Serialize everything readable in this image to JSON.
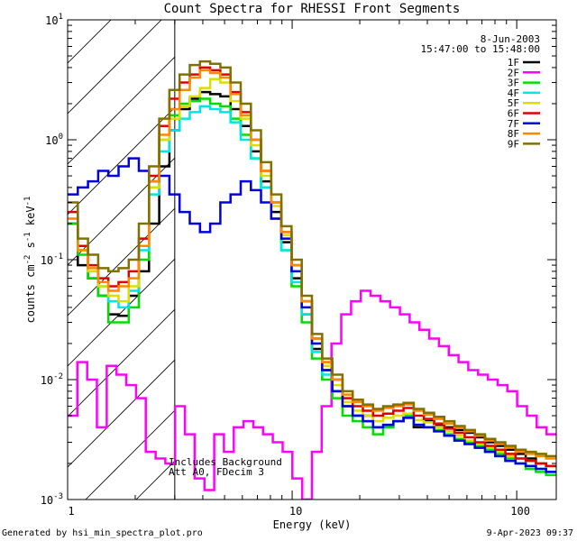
{
  "chart_data": {
    "type": "line",
    "title": "Count Spectra for RHESSI Front Segments",
    "xlabel": "Energy (keV)",
    "ylabel_main": "counts cm",
    "ylabel_sup1": "-2",
    "ylabel_mid": " s",
    "ylabel_sup2": "-1",
    "ylabel_end": " keV",
    "ylabel_sup3": "-1",
    "xscale": "log",
    "yscale": "log",
    "xlim": [
      1,
      150
    ],
    "ylim": [
      0.001,
      10
    ],
    "x_ticks": [
      {
        "value": 1,
        "label": "1"
      },
      {
        "value": 10,
        "label": "10"
      },
      {
        "value": 100,
        "label": "100"
      }
    ],
    "y_ticks": [
      {
        "exp": 1,
        "base": "10",
        "sup": "1"
      },
      {
        "exp": 0,
        "base": "10",
        "sup": "0"
      },
      {
        "exp": -1,
        "base": "10",
        "sup": "-1"
      },
      {
        "exp": -2,
        "base": "10",
        "sup": "-2"
      },
      {
        "exp": -3,
        "base": "10",
        "sup": "-3"
      }
    ],
    "date": "8-Jun-2003",
    "time_range": "15:47:00 to 15:48:00",
    "annotation_line1": "Includes Background",
    "annotation_line2": "Att A0, FDecim 3",
    "excluded_region_keV": [
      1,
      3
    ],
    "footer_left": "Generated by hsi_min_spectra_plot.pro",
    "footer_right": "9-Apr-2023 09:37",
    "legend_position": "top-right",
    "series": [
      {
        "name": "1F",
        "color": "#000000",
        "values": [
          0.2,
          0.09,
          0.07,
          0.05,
          0.035,
          0.034,
          0.05,
          0.08,
          0.2,
          0.6,
          1.2,
          1.8,
          2.2,
          2.5,
          2.4,
          2.3,
          1.8,
          1.3,
          0.8,
          0.45,
          0.25,
          0.14,
          0.07,
          0.035,
          0.018,
          0.012,
          0.008,
          0.006,
          0.005,
          0.005,
          0.004,
          0.004,
          0.0045,
          0.005,
          0.004,
          0.0045,
          0.0042,
          0.004,
          0.0038,
          0.0036,
          0.0033,
          0.003,
          0.0028,
          0.0026,
          0.0024,
          0.0022,
          0.002,
          0.0019
        ]
      },
      {
        "name": "2F",
        "color": "#ff00ff",
        "values": [
          0.005,
          0.014,
          0.01,
          0.004,
          0.013,
          0.011,
          0.009,
          0.007,
          0.0025,
          0.0022,
          0.002,
          0.006,
          0.0035,
          0.0015,
          0.0012,
          0.0035,
          0.0025,
          0.004,
          0.0045,
          0.004,
          0.0035,
          0.003,
          0.0025,
          0.0015,
          0.001,
          0.0025,
          0.006,
          0.02,
          0.035,
          0.045,
          0.055,
          0.05,
          0.045,
          0.04,
          0.035,
          0.03,
          0.026,
          0.022,
          0.019,
          0.016,
          0.014,
          0.012,
          0.011,
          0.01,
          0.009,
          0.008,
          0.006,
          0.005,
          0.004,
          0.0035
        ]
      },
      {
        "name": "3F",
        "color": "#00dd00",
        "values": [
          0.2,
          0.11,
          0.07,
          0.05,
          0.03,
          0.03,
          0.04,
          0.1,
          0.4,
          1.0,
          1.6,
          2.0,
          2.1,
          2.2,
          2.0,
          1.9,
          1.5,
          1.1,
          0.7,
          0.4,
          0.22,
          0.12,
          0.06,
          0.03,
          0.015,
          0.01,
          0.007,
          0.005,
          0.0045,
          0.004,
          0.0035,
          0.004,
          0.0045,
          0.005,
          0.0042,
          0.004,
          0.0038,
          0.0035,
          0.0032,
          0.003,
          0.0028,
          0.0026,
          0.0024,
          0.0022,
          0.002,
          0.0018,
          0.0017,
          0.0016
        ]
      },
      {
        "name": "4F",
        "color": "#00e5e5",
        "values": [
          0.25,
          0.12,
          0.08,
          0.06,
          0.045,
          0.04,
          0.055,
          0.12,
          0.35,
          0.8,
          1.2,
          1.5,
          1.7,
          1.9,
          1.8,
          1.7,
          1.4,
          1.0,
          0.7,
          0.4,
          0.22,
          0.12,
          0.065,
          0.035,
          0.017,
          0.011,
          0.008,
          0.006,
          0.005,
          0.0045,
          0.004,
          0.0042,
          0.0045,
          0.0048,
          0.0042,
          0.004,
          0.0037,
          0.0034,
          0.0031,
          0.0029,
          0.0027,
          0.0025,
          0.0023,
          0.0021,
          0.002,
          0.0019,
          0.0018,
          0.0017
        ]
      },
      {
        "name": "5F",
        "color": "#dddd00",
        "values": [
          0.22,
          0.12,
          0.08,
          0.06,
          0.05,
          0.045,
          0.06,
          0.13,
          0.4,
          1.0,
          1.5,
          1.9,
          2.3,
          2.7,
          3.2,
          3.0,
          2.1,
          1.5,
          0.9,
          0.5,
          0.28,
          0.16,
          0.09,
          0.045,
          0.02,
          0.013,
          0.009,
          0.0065,
          0.0055,
          0.005,
          0.0045,
          0.0048,
          0.005,
          0.0052,
          0.0046,
          0.0044,
          0.004,
          0.0037,
          0.0034,
          0.0031,
          0.0029,
          0.0027,
          0.0025,
          0.0023,
          0.0022,
          0.0021,
          0.002,
          0.0019
        ]
      },
      {
        "name": "6F",
        "color": "#dd0000",
        "values": [
          0.25,
          0.13,
          0.09,
          0.07,
          0.06,
          0.065,
          0.08,
          0.15,
          0.5,
          1.3,
          2.2,
          3.0,
          3.5,
          4.0,
          3.8,
          3.5,
          2.5,
          1.7,
          1.0,
          0.55,
          0.3,
          0.17,
          0.09,
          0.045,
          0.022,
          0.014,
          0.01,
          0.007,
          0.006,
          0.0055,
          0.005,
          0.0052,
          0.0055,
          0.0058,
          0.005,
          0.0047,
          0.0043,
          0.0039,
          0.0036,
          0.0033,
          0.003,
          0.0028,
          0.0026,
          0.0024,
          0.0022,
          0.0021,
          0.002,
          0.0019
        ]
      },
      {
        "name": "7F",
        "color": "#0000dd",
        "values": [
          0.35,
          0.4,
          0.45,
          0.55,
          0.5,
          0.6,
          0.7,
          0.55,
          0.45,
          0.5,
          0.35,
          0.25,
          0.2,
          0.17,
          0.2,
          0.3,
          0.35,
          0.45,
          0.38,
          0.3,
          0.22,
          0.15,
          0.08,
          0.04,
          0.02,
          0.012,
          0.008,
          0.006,
          0.005,
          0.0045,
          0.004,
          0.0042,
          0.0045,
          0.0048,
          0.0042,
          0.004,
          0.0037,
          0.0034,
          0.0031,
          0.0029,
          0.0027,
          0.0025,
          0.0023,
          0.0021,
          0.002,
          0.0019,
          0.0018,
          0.0017
        ]
      },
      {
        "name": "8F",
        "color": "#ff8800",
        "values": [
          0.22,
          0.12,
          0.085,
          0.065,
          0.055,
          0.06,
          0.07,
          0.13,
          0.45,
          1.1,
          1.8,
          2.6,
          3.3,
          3.8,
          3.6,
          3.3,
          2.4,
          1.6,
          1.0,
          0.55,
          0.3,
          0.17,
          0.09,
          0.045,
          0.022,
          0.014,
          0.01,
          0.0075,
          0.0065,
          0.006,
          0.0055,
          0.0058,
          0.006,
          0.0062,
          0.0055,
          0.0051,
          0.0047,
          0.0043,
          0.004,
          0.0037,
          0.0034,
          0.0031,
          0.0029,
          0.0027,
          0.0025,
          0.0024,
          0.0023,
          0.0022
        ]
      },
      {
        "name": "9F",
        "color": "#807000",
        "values": [
          0.3,
          0.15,
          0.11,
          0.085,
          0.08,
          0.085,
          0.1,
          0.2,
          0.6,
          1.5,
          2.6,
          3.5,
          4.2,
          4.5,
          4.3,
          4.0,
          3.0,
          2.0,
          1.2,
          0.65,
          0.35,
          0.19,
          0.1,
          0.05,
          0.024,
          0.015,
          0.011,
          0.008,
          0.0068,
          0.0062,
          0.0057,
          0.006,
          0.0062,
          0.0064,
          0.0057,
          0.0053,
          0.0049,
          0.0045,
          0.0041,
          0.0038,
          0.0035,
          0.0032,
          0.003,
          0.0028,
          0.0026,
          0.0025,
          0.0024,
          0.0023
        ]
      }
    ]
  }
}
